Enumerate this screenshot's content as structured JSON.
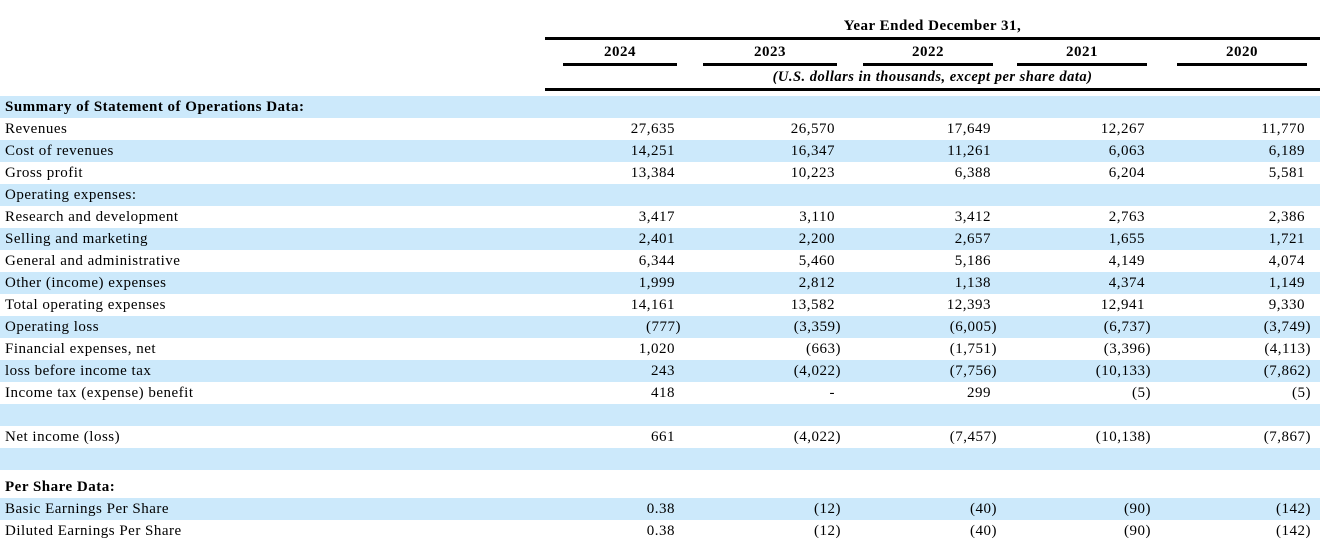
{
  "colors": {
    "row_stripe": "#cce9fb",
    "rule_line": "#000000",
    "text": "#000000"
  },
  "table": {
    "header": {
      "title": "Year Ended December 31,",
      "years": [
        "2024",
        "2023",
        "2022",
        "2021",
        "2020"
      ],
      "note": "(U.S. dollars in thousands, except per share data)"
    },
    "rows": [
      {
        "label": "Summary of Statement of Operations Data:",
        "bold": true,
        "bg": "blue",
        "values": [
          "",
          "",
          "",
          "",
          ""
        ]
      },
      {
        "label": "Revenues",
        "bg": "white",
        "values": [
          "27,635",
          "26,570",
          "17,649",
          "12,267",
          "11,770"
        ]
      },
      {
        "label": "Cost of revenues",
        "bg": "blue",
        "values": [
          "14,251",
          "16,347",
          "11,261",
          "6,063",
          "6,189"
        ]
      },
      {
        "label": "Gross profit",
        "bg": "white",
        "values": [
          "13,384",
          "10,223",
          "6,388",
          "6,204",
          "5,581"
        ]
      },
      {
        "label": "Operating expenses:",
        "bg": "blue",
        "values": [
          "",
          "",
          "",
          "",
          ""
        ]
      },
      {
        "label": "Research and development",
        "bg": "white",
        "values": [
          "3,417",
          "3,110",
          "3,412",
          "2,763",
          "2,386"
        ]
      },
      {
        "label": "Selling and marketing",
        "bg": "blue",
        "values": [
          "2,401",
          "2,200",
          "2,657",
          "1,655",
          "1,721"
        ]
      },
      {
        "label": "General and administrative",
        "bg": "white",
        "values": [
          "6,344",
          "5,460",
          "5,186",
          "4,149",
          "4,074"
        ]
      },
      {
        "label": "Other (income) expenses",
        "bg": "blue",
        "values": [
          "1,999",
          "2,812",
          "1,138",
          "4,374",
          "1,149"
        ]
      },
      {
        "label": "Total operating expenses",
        "bg": "white",
        "values": [
          "14,161",
          "13,582",
          "12,393",
          "12,941",
          "9,330"
        ]
      },
      {
        "label": "Operating loss",
        "bg": "blue",
        "values": [
          "(777)",
          "(3,359)",
          "(6,005)",
          "(6,737)",
          "(3,749)"
        ]
      },
      {
        "label": "Financial expenses, net",
        "bg": "white",
        "values": [
          "1,020",
          "(663)",
          "(1,751)",
          "(3,396)",
          "(4,113)"
        ]
      },
      {
        "label": "loss before income tax",
        "bg": "blue",
        "values": [
          "243",
          "(4,022)",
          "(7,756)",
          "(10,133)",
          "(7,862)"
        ]
      },
      {
        "label": "Income tax (expense) benefit",
        "bg": "white",
        "values": [
          "418",
          "-",
          "299",
          "(5)",
          "(5)"
        ]
      },
      {
        "label": "",
        "bg": "blue",
        "values": [
          "",
          "",
          "",
          "",
          ""
        ]
      },
      {
        "label": "Net income (loss)",
        "bg": "white",
        "values": [
          "661",
          "(4,022)",
          "(7,457)",
          "(10,138)",
          "(7,867)"
        ]
      },
      {
        "label": "",
        "bg": "blue",
        "values": [
          "",
          "",
          "",
          "",
          ""
        ]
      },
      {
        "label": "Per Share Data:",
        "bold": true,
        "bg": "white",
        "spacer_before": true,
        "values": [
          "",
          "",
          "",
          "",
          ""
        ]
      },
      {
        "label": "Basic Earnings Per Share",
        "bg": "blue",
        "values": [
          "0.38",
          "(12)",
          "(40)",
          "(90)",
          "(142)"
        ]
      },
      {
        "label": "Diluted Earnings Per Share",
        "bg": "white",
        "values": [
          "0.38",
          "(12)",
          "(40)",
          "(90)",
          "(142)"
        ]
      }
    ]
  }
}
